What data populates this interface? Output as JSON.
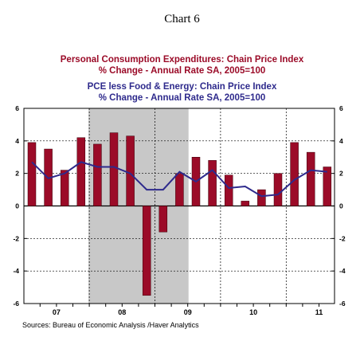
{
  "page": {
    "title": "Chart 6",
    "source": "Sources:  Bureau of Economic Analysis /Haver Analytics"
  },
  "chart_data": {
    "type": "bar",
    "title_lines": [
      "Personal Consumption Expenditures: Chain Price Index",
      "% Change - Annual Rate    SA, 2005=100",
      "PCE less Food & Energy: Chain Price Index",
      "% Change - Annual Rate    SA, 2005=100"
    ],
    "ylim": [
      -6,
      6
    ],
    "yticks": [
      -6,
      -4,
      -2,
      0,
      2,
      4,
      6
    ],
    "year_labels": [
      "07",
      "08",
      "09",
      "10",
      "11"
    ],
    "grid": true,
    "shaded_period": {
      "start": "2008Q1",
      "end": "2009Q2"
    },
    "series": [
      {
        "type": "bar",
        "color": "#9b0b28",
        "categories": [
          "2007Q1",
          "2007Q2",
          "2007Q3",
          "2007Q4",
          "2008Q1",
          "2008Q2",
          "2008Q3",
          "2008Q4",
          "2009Q1",
          "2009Q2",
          "2009Q3",
          "2009Q4",
          "2010Q1",
          "2010Q2",
          "2010Q3",
          "2010Q4",
          "2011Q1",
          "2011Q2",
          "2011Q3"
        ],
        "values": [
          3.9,
          3.5,
          2.2,
          4.2,
          3.8,
          4.5,
          4.3,
          -5.5,
          -1.6,
          2.0,
          3.0,
          2.8,
          1.9,
          0.3,
          1.0,
          2.0,
          3.9,
          3.3,
          2.4
        ]
      },
      {
        "type": "line",
        "color": "#2e2a8c",
        "categories": [
          "2007Q1",
          "2007Q2",
          "2007Q3",
          "2007Q4",
          "2008Q1",
          "2008Q2",
          "2008Q3",
          "2008Q4",
          "2009Q1",
          "2009Q2",
          "2009Q3",
          "2009Q4",
          "2010Q1",
          "2010Q2",
          "2010Q3",
          "2010Q4",
          "2011Q1",
          "2011Q2",
          "2011Q3"
        ],
        "values": [
          2.7,
          1.7,
          2.0,
          2.7,
          2.4,
          2.4,
          2.0,
          1.0,
          1.0,
          2.1,
          1.5,
          2.2,
          1.1,
          1.2,
          0.6,
          0.7,
          1.6,
          2.2,
          2.1
        ]
      }
    ]
  }
}
